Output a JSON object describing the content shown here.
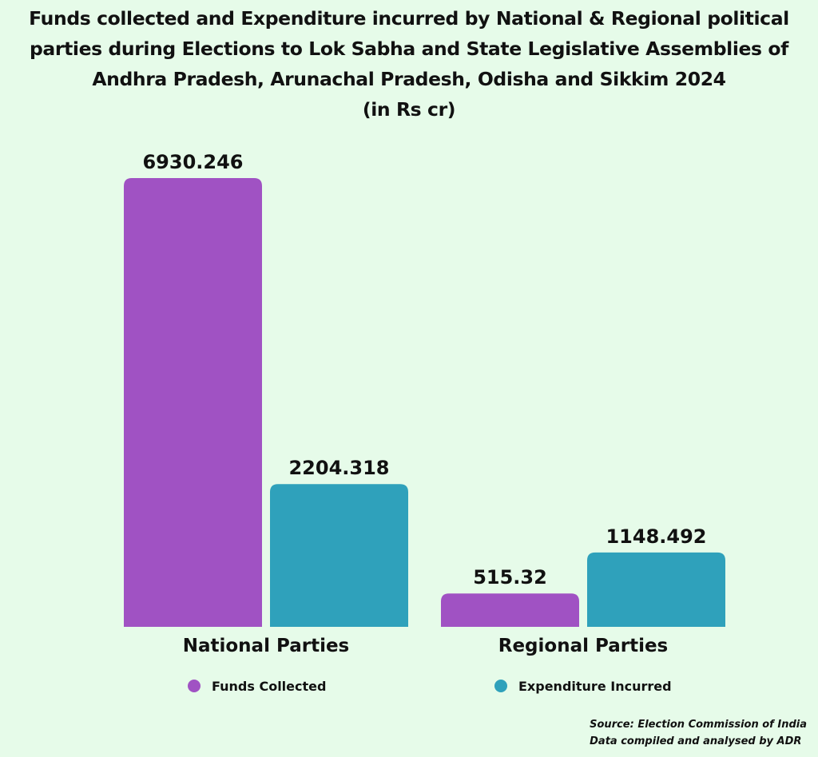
{
  "chart_data": {
    "type": "bar",
    "title_lines": [
      "Funds collected and Expenditure incurred by National & Regional political",
      "parties during Elections to Lok Sabha and State Legislative Assemblies of",
      "Andhra Pradesh, Arunachal Pradesh, Odisha and Sikkim 2024",
      "(in Rs cr)"
    ],
    "categories": [
      "National Parties",
      "Regional Parties"
    ],
    "series": [
      {
        "name": "Funds Collected",
        "values": [
          6930.246,
          515.32
        ],
        "labels": [
          "6930.246",
          "515.32"
        ],
        "color": "#a052c3"
      },
      {
        "name": "Expenditure Incurred",
        "values": [
          2204.318,
          1148.492
        ],
        "labels": [
          "2204.318",
          "1148.492"
        ],
        "color": "#2fa1bb"
      }
    ],
    "ylim": [
      0,
      6930.246
    ],
    "grid": false,
    "legend_position": "bottom"
  },
  "source": {
    "line1": "Source: Election Commission of India",
    "line2": "Data compiled and analysed by ADR"
  }
}
